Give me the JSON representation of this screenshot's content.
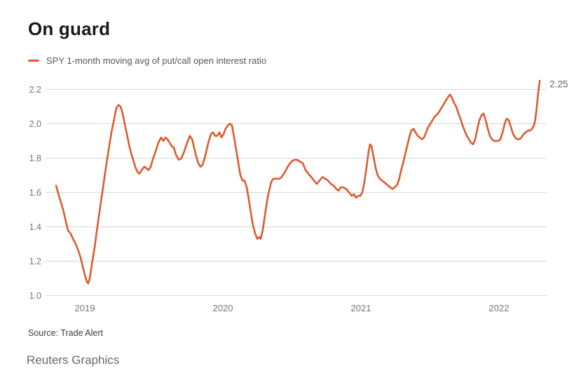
{
  "page": {
    "title": "On guard",
    "source": "Source: Trade Alert",
    "attribution": "Reuters Graphics"
  },
  "legend": {
    "series_label": "SPY 1-month moving avg of put/call open interest ratio"
  },
  "colors": {
    "line": "#DD5B2F",
    "grid": "#D9D9D9",
    "tick_text": "#757575",
    "title_text": "#1A1A1A",
    "legend_text": "#565656",
    "source_text": "#3C3C3C",
    "attribution_text": "#696969",
    "end_label_text": "#666666"
  },
  "chart_data": {
    "type": "line",
    "title": "On guard",
    "xlabel": "",
    "ylabel": "",
    "x_unit": "decimal_year",
    "xlim": [
      2018.73,
      2022.36
    ],
    "ylim": [
      1.0,
      2.3
    ],
    "y_ticks": [
      1.0,
      1.2,
      1.4,
      1.6,
      1.8,
      2.0,
      2.2
    ],
    "x_ticks": [
      2019,
      2020,
      2021,
      2022
    ],
    "grid": "horizontal",
    "legend_position": "top-left",
    "end_label": "2.25",
    "series": [
      {
        "name": "SPY 1-month moving avg of put/call open interest ratio",
        "color": "#DD5B2F",
        "points": [
          [
            2018.792,
            1.64
          ],
          [
            2018.817,
            1.57
          ],
          [
            2018.843,
            1.5
          ],
          [
            2018.863,
            1.43
          ],
          [
            2018.878,
            1.38
          ],
          [
            2018.898,
            1.36
          ],
          [
            2018.914,
            1.33
          ],
          [
            2018.934,
            1.3
          ],
          [
            2018.954,
            1.26
          ],
          [
            2018.97,
            1.22
          ],
          [
            2018.985,
            1.17
          ],
          [
            2019.0,
            1.12
          ],
          [
            2019.015,
            1.08
          ],
          [
            2019.025,
            1.07
          ],
          [
            2019.036,
            1.1
          ],
          [
            2019.051,
            1.18
          ],
          [
            2019.071,
            1.28
          ],
          [
            2019.091,
            1.4
          ],
          [
            2019.112,
            1.52
          ],
          [
            2019.132,
            1.63
          ],
          [
            2019.152,
            1.74
          ],
          [
            2019.173,
            1.85
          ],
          [
            2019.193,
            1.95
          ],
          [
            2019.213,
            2.03
          ],
          [
            2019.228,
            2.09
          ],
          [
            2019.244,
            2.11
          ],
          [
            2019.259,
            2.1
          ],
          [
            2019.274,
            2.06
          ],
          [
            2019.289,
            2.0
          ],
          [
            2019.305,
            1.94
          ],
          [
            2019.32,
            1.88
          ],
          [
            2019.335,
            1.83
          ],
          [
            2019.35,
            1.79
          ],
          [
            2019.365,
            1.75
          ],
          [
            2019.381,
            1.72
          ],
          [
            2019.396,
            1.71
          ],
          [
            2019.411,
            1.73
          ],
          [
            2019.431,
            1.75
          ],
          [
            2019.447,
            1.74
          ],
          [
            2019.462,
            1.73
          ],
          [
            2019.477,
            1.75
          ],
          [
            2019.492,
            1.79
          ],
          [
            2019.513,
            1.84
          ],
          [
            2019.533,
            1.89
          ],
          [
            2019.553,
            1.92
          ],
          [
            2019.569,
            1.9
          ],
          [
            2019.584,
            1.92
          ],
          [
            2019.599,
            1.91
          ],
          [
            2019.614,
            1.89
          ],
          [
            2019.629,
            1.87
          ],
          [
            2019.645,
            1.86
          ],
          [
            2019.66,
            1.82
          ],
          [
            2019.68,
            1.79
          ],
          [
            2019.7,
            1.8
          ],
          [
            2019.721,
            1.84
          ],
          [
            2019.741,
            1.89
          ],
          [
            2019.761,
            1.93
          ],
          [
            2019.777,
            1.91
          ],
          [
            2019.792,
            1.86
          ],
          [
            2019.807,
            1.81
          ],
          [
            2019.822,
            1.77
          ],
          [
            2019.838,
            1.75
          ],
          [
            2019.853,
            1.76
          ],
          [
            2019.868,
            1.8
          ],
          [
            2019.883,
            1.85
          ],
          [
            2019.898,
            1.9
          ],
          [
            2019.914,
            1.94
          ],
          [
            2019.929,
            1.95
          ],
          [
            2019.944,
            1.93
          ],
          [
            2019.959,
            1.93
          ],
          [
            2019.975,
            1.95
          ],
          [
            2019.99,
            1.92
          ],
          [
            2020.005,
            1.94
          ],
          [
            2020.02,
            1.97
          ],
          [
            2020.036,
            1.99
          ],
          [
            2020.051,
            2.0
          ],
          [
            2020.066,
            1.99
          ],
          [
            2020.081,
            1.92
          ],
          [
            2020.096,
            1.85
          ],
          [
            2020.112,
            1.77
          ],
          [
            2020.127,
            1.7
          ],
          [
            2020.142,
            1.67
          ],
          [
            2020.157,
            1.67
          ],
          [
            2020.173,
            1.63
          ],
          [
            2020.188,
            1.56
          ],
          [
            2020.203,
            1.48
          ],
          [
            2020.218,
            1.41
          ],
          [
            2020.234,
            1.36
          ],
          [
            2020.249,
            1.33
          ],
          [
            2020.264,
            1.34
          ],
          [
            2020.274,
            1.33
          ],
          [
            2020.289,
            1.38
          ],
          [
            2020.305,
            1.47
          ],
          [
            2020.32,
            1.55
          ],
          [
            2020.335,
            1.61
          ],
          [
            2020.35,
            1.66
          ],
          [
            2020.365,
            1.68
          ],
          [
            2020.381,
            1.68
          ],
          [
            2020.396,
            1.68
          ],
          [
            2020.411,
            1.68
          ],
          [
            2020.426,
            1.69
          ],
          [
            2020.442,
            1.71
          ],
          [
            2020.457,
            1.73
          ],
          [
            2020.477,
            1.76
          ],
          [
            2020.497,
            1.78
          ],
          [
            2020.518,
            1.79
          ],
          [
            2020.538,
            1.79
          ],
          [
            2020.558,
            1.78
          ],
          [
            2020.579,
            1.77
          ],
          [
            2020.599,
            1.73
          ],
          [
            2020.619,
            1.71
          ],
          [
            2020.64,
            1.69
          ],
          [
            2020.66,
            1.67
          ],
          [
            2020.68,
            1.65
          ],
          [
            2020.701,
            1.67
          ],
          [
            2020.721,
            1.69
          ],
          [
            2020.741,
            1.68
          ],
          [
            2020.761,
            1.67
          ],
          [
            2020.782,
            1.65
          ],
          [
            2020.802,
            1.64
          ],
          [
            2020.822,
            1.62
          ],
          [
            2020.838,
            1.61
          ],
          [
            2020.853,
            1.63
          ],
          [
            2020.873,
            1.63
          ],
          [
            2020.893,
            1.62
          ],
          [
            2020.914,
            1.6
          ],
          [
            2020.934,
            1.58
          ],
          [
            2020.949,
            1.59
          ],
          [
            2020.964,
            1.57
          ],
          [
            2020.98,
            1.58
          ],
          [
            2020.995,
            1.58
          ],
          [
            2021.01,
            1.6
          ],
          [
            2021.025,
            1.66
          ],
          [
            2021.041,
            1.75
          ],
          [
            2021.056,
            1.84
          ],
          [
            2021.066,
            1.88
          ],
          [
            2021.076,
            1.87
          ],
          [
            2021.091,
            1.81
          ],
          [
            2021.107,
            1.74
          ],
          [
            2021.122,
            1.7
          ],
          [
            2021.137,
            1.68
          ],
          [
            2021.152,
            1.67
          ],
          [
            2021.168,
            1.66
          ],
          [
            2021.183,
            1.65
          ],
          [
            2021.198,
            1.64
          ],
          [
            2021.213,
            1.63
          ],
          [
            2021.228,
            1.62
          ],
          [
            2021.244,
            1.63
          ],
          [
            2021.259,
            1.64
          ],
          [
            2021.274,
            1.67
          ],
          [
            2021.289,
            1.72
          ],
          [
            2021.305,
            1.77
          ],
          [
            2021.32,
            1.82
          ],
          [
            2021.335,
            1.87
          ],
          [
            2021.35,
            1.92
          ],
          [
            2021.365,
            1.96
          ],
          [
            2021.381,
            1.97
          ],
          [
            2021.396,
            1.95
          ],
          [
            2021.411,
            1.93
          ],
          [
            2021.426,
            1.92
          ],
          [
            2021.442,
            1.91
          ],
          [
            2021.457,
            1.92
          ],
          [
            2021.472,
            1.95
          ],
          [
            2021.487,
            1.98
          ],
          [
            2021.503,
            2.0
          ],
          [
            2021.518,
            2.02
          ],
          [
            2021.533,
            2.04
          ],
          [
            2021.558,
            2.06
          ],
          [
            2021.574,
            2.08
          ],
          [
            2021.589,
            2.1
          ],
          [
            2021.604,
            2.12
          ],
          [
            2021.619,
            2.14
          ],
          [
            2021.635,
            2.16
          ],
          [
            2021.645,
            2.17
          ],
          [
            2021.66,
            2.15
          ],
          [
            2021.675,
            2.12
          ],
          [
            2021.69,
            2.1
          ],
          [
            2021.706,
            2.06
          ],
          [
            2021.721,
            2.03
          ],
          [
            2021.736,
            1.99
          ],
          [
            2021.751,
            1.96
          ],
          [
            2021.767,
            1.93
          ],
          [
            2021.782,
            1.91
          ],
          [
            2021.797,
            1.89
          ],
          [
            2021.812,
            1.88
          ],
          [
            2021.828,
            1.91
          ],
          [
            2021.843,
            1.97
          ],
          [
            2021.858,
            2.02
          ],
          [
            2021.873,
            2.05
          ],
          [
            2021.888,
            2.06
          ],
          [
            2021.904,
            2.02
          ],
          [
            2021.919,
            1.97
          ],
          [
            2021.934,
            1.93
          ],
          [
            2021.949,
            1.91
          ],
          [
            2021.965,
            1.9
          ],
          [
            2021.98,
            1.9
          ],
          [
            2021.995,
            1.9
          ],
          [
            2022.01,
            1.91
          ],
          [
            2022.026,
            1.95
          ],
          [
            2022.041,
            2.0
          ],
          [
            2022.056,
            2.03
          ],
          [
            2022.071,
            2.02
          ],
          [
            2022.087,
            1.98
          ],
          [
            2022.102,
            1.94
          ],
          [
            2022.117,
            1.92
          ],
          [
            2022.132,
            1.91
          ],
          [
            2022.147,
            1.91
          ],
          [
            2022.163,
            1.92
          ],
          [
            2022.178,
            1.94
          ],
          [
            2022.193,
            1.95
          ],
          [
            2022.208,
            1.96
          ],
          [
            2022.224,
            1.96
          ],
          [
            2022.239,
            1.97
          ],
          [
            2022.254,
            1.99
          ],
          [
            2022.264,
            2.03
          ],
          [
            2022.274,
            2.1
          ],
          [
            2022.284,
            2.18
          ],
          [
            2022.295,
            2.25
          ]
        ]
      }
    ]
  }
}
